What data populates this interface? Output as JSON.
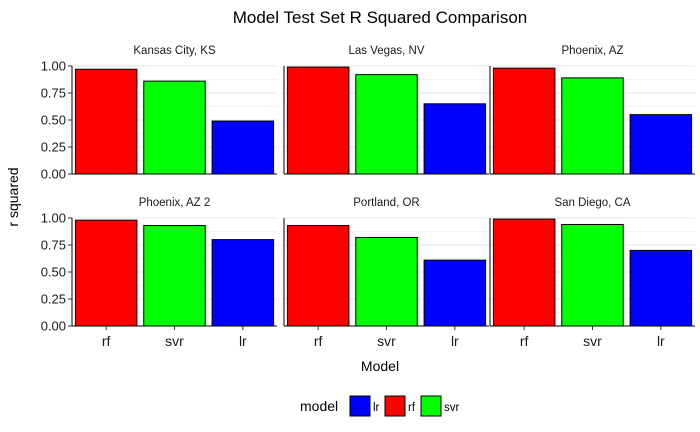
{
  "chart_data": {
    "type": "bar",
    "title": "Model Test Set R Squared Comparison",
    "xlabel": "Model",
    "ylabel": "r squared",
    "ylim": [
      0,
      1.0
    ],
    "yticks": [
      "0.00",
      "0.25",
      "0.50",
      "0.75",
      "1.00"
    ],
    "categories": [
      "rf",
      "svr",
      "lr"
    ],
    "colors": {
      "rf": "#ff0000",
      "svr": "#00ff00",
      "lr": "#0000ff"
    },
    "grid": true,
    "legend": {
      "title": "model",
      "position": "bottom",
      "entries": [
        "lr",
        "rf",
        "svr"
      ]
    },
    "facets": [
      {
        "name": "Kansas City, KS",
        "values": [
          0.97,
          0.86,
          0.49
        ]
      },
      {
        "name": "Las Vegas, NV",
        "values": [
          0.99,
          0.92,
          0.65
        ]
      },
      {
        "name": "Phoenix, AZ",
        "values": [
          0.98,
          0.89,
          0.55
        ]
      },
      {
        "name": "Phoenix, AZ 2",
        "values": [
          0.98,
          0.93,
          0.8
        ]
      },
      {
        "name": "Portland, OR",
        "values": [
          0.93,
          0.82,
          0.61
        ]
      },
      {
        "name": "San Diego, CA",
        "values": [
          0.99,
          0.94,
          0.7
        ]
      }
    ]
  }
}
